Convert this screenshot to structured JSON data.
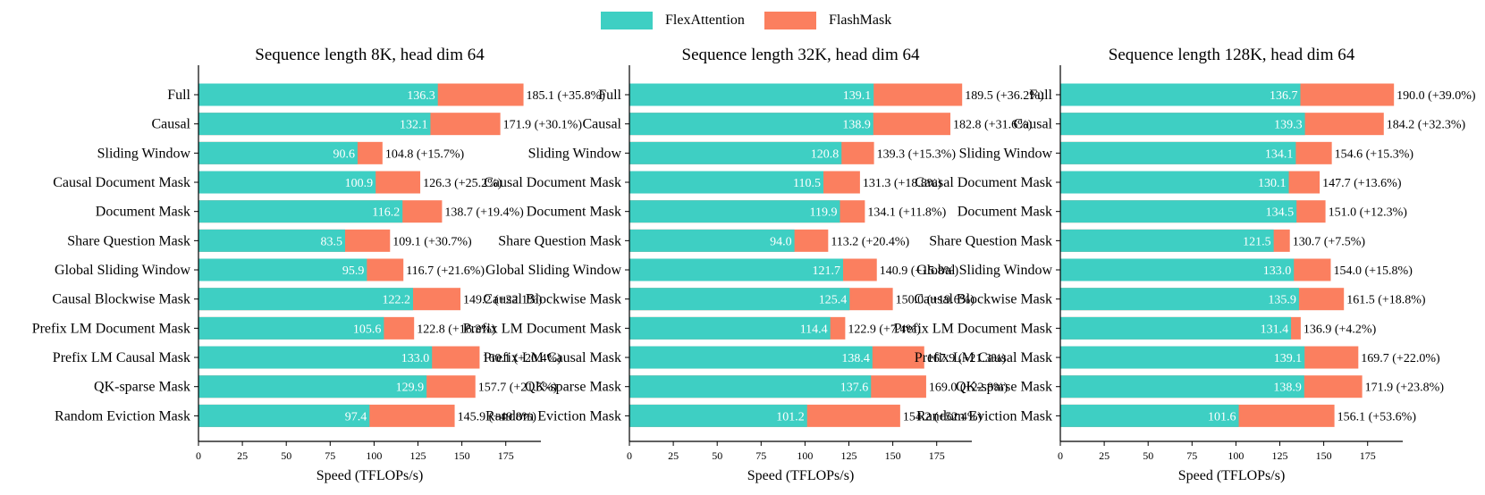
{
  "legend": {
    "items": [
      {
        "label": "FlexAttention",
        "color": "#3ecfc3"
      },
      {
        "label": "FlashMask",
        "color": "#fb7f5f"
      }
    ]
  },
  "chart_data": [
    {
      "type": "bar",
      "orientation": "horizontal",
      "stacked": "overlay",
      "title": "Sequence length 8K, head dim 64",
      "xlabel": "Speed (TFLOPs/s)",
      "ylabel": "",
      "xlim": [
        0,
        195
      ],
      "xticks": [
        "0",
        "25",
        "50",
        "75",
        "100",
        "125",
        "150",
        "175"
      ],
      "categories": [
        "Full",
        "Causal",
        "Sliding Window",
        "Causal Document Mask",
        "Document Mask",
        "Share Question Mask",
        "Global Sliding Window",
        "Causal Blockwise Mask",
        "Prefix LM Document Mask",
        "Prefix LM Causal Mask",
        "QK-sparse Mask",
        "Random Eviction Mask"
      ],
      "series": [
        {
          "name": "FlexAttention",
          "values": [
            136.3,
            132.1,
            90.6,
            100.9,
            116.2,
            83.5,
            95.9,
            122.2,
            105.6,
            133.0,
            129.9,
            97.4
          ]
        },
        {
          "name": "FlashMask",
          "values": [
            185.1,
            171.9,
            104.8,
            126.3,
            138.7,
            109.1,
            116.7,
            149.2,
            122.8,
            160.1,
            157.7,
            145.9
          ]
        }
      ],
      "inner_labels": [
        "136.3",
        "132.1",
        "90.6",
        "100.9",
        "116.2",
        "83.5",
        "95.9",
        "122.2",
        "105.6",
        "133.0",
        "129.9",
        "97.4"
      ],
      "outer_labels": [
        "185.1 (+35.8%)",
        "171.9 (+30.1%)",
        "104.8 (+15.7%)",
        "126.3 (+25.2%)",
        "138.7 (+19.4%)",
        "109.1 (+30.7%)",
        "116.7 (+21.6%)",
        "149.2 (+22.1%)",
        "122.8 (+16.3%)",
        "160.1 (+20.4%)",
        "157.7 (+21.5%)",
        "145.9 (+49.8%)"
      ]
    },
    {
      "type": "bar",
      "orientation": "horizontal",
      "stacked": "overlay",
      "title": "Sequence length 32K, head dim 64",
      "xlabel": "Speed (TFLOPs/s)",
      "ylabel": "",
      "xlim": [
        0,
        195
      ],
      "xticks": [
        "0",
        "25",
        "50",
        "75",
        "100",
        "125",
        "150",
        "175"
      ],
      "categories": [
        "Full",
        "Causal",
        "Sliding Window",
        "Causal Document Mask",
        "Document Mask",
        "Share Question Mask",
        "Global Sliding Window",
        "Causal Blockwise Mask",
        "Prefix LM Document Mask",
        "Prefix LM Causal Mask",
        "QK-sparse Mask",
        "Random Eviction Mask"
      ],
      "series": [
        {
          "name": "FlexAttention",
          "values": [
            139.1,
            138.9,
            120.8,
            110.5,
            119.9,
            94.0,
            121.7,
            125.4,
            114.4,
            138.4,
            137.6,
            101.2
          ]
        },
        {
          "name": "FlashMask",
          "values": [
            189.5,
            182.8,
            139.3,
            131.3,
            134.1,
            113.2,
            140.9,
            150.0,
            122.9,
            167.9,
            169.0,
            154.2
          ]
        }
      ],
      "inner_labels": [
        "139.1",
        "138.9",
        "120.8",
        "110.5",
        "119.9",
        "94.0",
        "121.7",
        "125.4",
        "114.4",
        "138.4",
        "137.6",
        "101.2"
      ],
      "outer_labels": [
        "189.5 (+36.2%)",
        "182.8 (+31.6%)",
        "139.3 (+15.3%)",
        "131.3 (+18.8%)",
        "134.1 (+11.8%)",
        "113.2 (+20.4%)",
        "140.9 (+15.8%)",
        "150.0 (+19.6%)",
        "122.9 (+7.4%)",
        "167.9 (+21.3%)",
        "169.0 (+22.8%)",
        "154.2 (+52.4%)"
      ]
    },
    {
      "type": "bar",
      "orientation": "horizontal",
      "stacked": "overlay",
      "title": "Sequence length 128K, head dim 64",
      "xlabel": "Speed (TFLOPs/s)",
      "ylabel": "",
      "xlim": [
        0,
        195
      ],
      "xticks": [
        "0",
        "25",
        "50",
        "75",
        "100",
        "125",
        "150",
        "175"
      ],
      "categories": [
        "Full",
        "Causal",
        "Sliding Window",
        "Causal Document Mask",
        "Document Mask",
        "Share Question Mask",
        "Global Sliding Window",
        "Causal Blockwise Mask",
        "Prefix LM Document Mask",
        "Prefix LM Causal Mask",
        "QK-sparse Mask",
        "Random Eviction Mask"
      ],
      "series": [
        {
          "name": "FlexAttention",
          "values": [
            136.7,
            139.3,
            134.1,
            130.1,
            134.5,
            121.5,
            133.0,
            135.9,
            131.4,
            139.1,
            138.9,
            101.6
          ]
        },
        {
          "name": "FlashMask",
          "values": [
            190.0,
            184.2,
            154.6,
            147.7,
            151.0,
            130.7,
            154.0,
            161.5,
            136.9,
            169.7,
            171.9,
            156.1
          ]
        }
      ],
      "inner_labels": [
        "136.7",
        "139.3",
        "134.1",
        "130.1",
        "134.5",
        "121.5",
        "133.0",
        "135.9",
        "131.4",
        "139.1",
        "138.9",
        "101.6"
      ],
      "outer_labels": [
        "190.0 (+39.0%)",
        "184.2 (+32.3%)",
        "154.6 (+15.3%)",
        "147.7 (+13.6%)",
        "151.0 (+12.3%)",
        "130.7 (+7.5%)",
        "154.0 (+15.8%)",
        "161.5 (+18.8%)",
        "136.9 (+4.2%)",
        "169.7 (+22.0%)",
        "171.9 (+23.8%)",
        "156.1 (+53.6%)"
      ]
    }
  ]
}
